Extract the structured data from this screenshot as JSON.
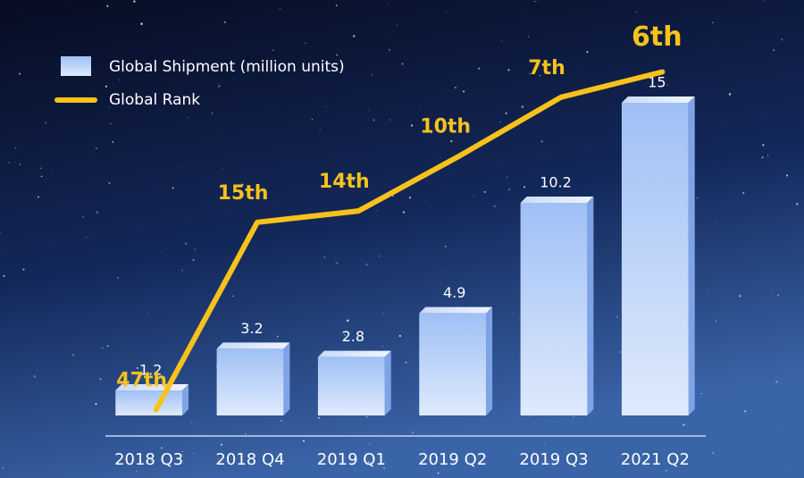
{
  "chart_data": {
    "type": "bar_line",
    "categories": [
      "2018 Q3",
      "2018 Q4",
      "2019 Q1",
      "2019 Q2",
      "2019 Q3",
      "2021 Q2"
    ],
    "series": [
      {
        "name": "Global Shipment (million units)",
        "type": "bar",
        "color": "#8fb4f0",
        "values": [
          1.2,
          3.2,
          2.8,
          4.9,
          10.2,
          15
        ]
      },
      {
        "name": "Global Rank",
        "type": "line",
        "axis": "y2",
        "color": "#f7c21b",
        "values": [
          47,
          15,
          14,
          10,
          7,
          6
        ],
        "value_labels": [
          "47th",
          "15th",
          "14th",
          "10th",
          "7th",
          "6th"
        ]
      }
    ],
    "ylim": [
      0,
      15
    ],
    "y2lim": [
      50,
      5
    ],
    "y2scale": "log",
    "legend": "top-left"
  }
}
